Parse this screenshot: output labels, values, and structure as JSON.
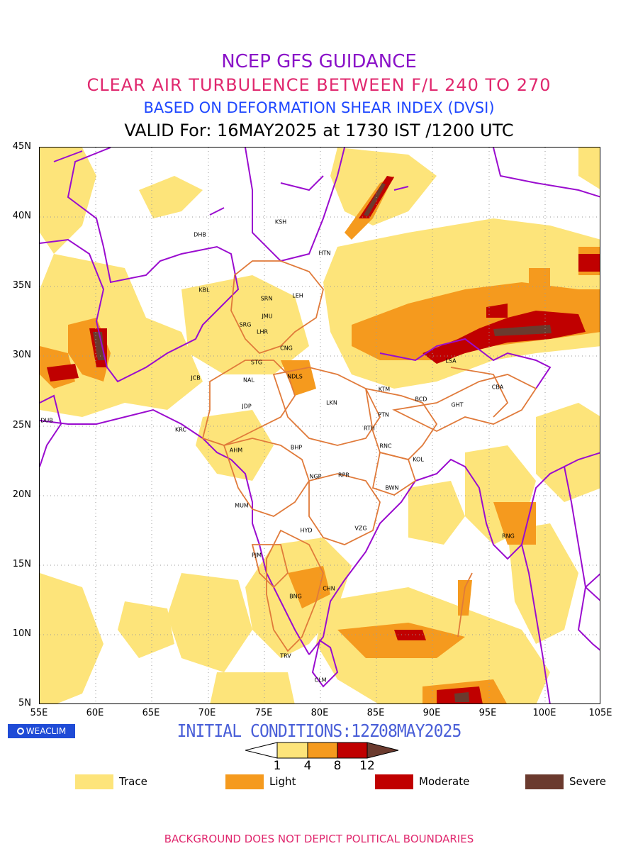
{
  "header": {
    "line1": "NCEP GFS GUIDANCE",
    "line2": "CLEAR AIR TURBULENCE BETWEEN F/L 240 TO 270",
    "line3": "BASED ON DEFORMATION SHEAR INDEX (DVSI)",
    "line4": "VALID For: 16MAY2025 at 1730 IST /1200 UTC"
  },
  "map": {
    "lat_labels": [
      "45N",
      "40N",
      "35N",
      "30N",
      "25N",
      "20N",
      "15N",
      "10N",
      "5N"
    ],
    "lon_labels": [
      "55E",
      "60E",
      "65E",
      "70E",
      "75E",
      "80E",
      "85E",
      "90E",
      "95E",
      "100E",
      "105E"
    ],
    "colors": {
      "trace": "#fde47a",
      "light": "#f59a1e",
      "moderate": "#c00000",
      "severe": "#6b3a2e",
      "coast": "#9a0ccf",
      "state": "#e07a3a",
      "grid": "#9a9a9a"
    },
    "cities": [
      {
        "id": "KSH",
        "label": "KSH"
      },
      {
        "id": "DHB",
        "label": "DHB"
      },
      {
        "id": "HTN",
        "label": "HTN"
      },
      {
        "id": "KBL",
        "label": "KBL"
      },
      {
        "id": "SRN",
        "label": "SRN"
      },
      {
        "id": "LEH",
        "label": "LEH"
      },
      {
        "id": "JMU",
        "label": "JMU"
      },
      {
        "id": "SRG",
        "label": "SRG"
      },
      {
        "id": "LHR",
        "label": "LHR"
      },
      {
        "id": "CNG",
        "label": "CNG"
      },
      {
        "id": "LSA",
        "label": "LSA"
      },
      {
        "id": "STG",
        "label": "STG"
      },
      {
        "id": "JCB",
        "label": "JCB"
      },
      {
        "id": "NAL",
        "label": "NAL"
      },
      {
        "id": "NDLS",
        "label": "NDLS"
      },
      {
        "id": "KTM",
        "label": "KTM"
      },
      {
        "id": "CBA",
        "label": "CBA"
      },
      {
        "id": "BCD",
        "label": "BCD"
      },
      {
        "id": "GHT",
        "label": "GHT"
      },
      {
        "id": "LKN",
        "label": "LKN"
      },
      {
        "id": "JDP",
        "label": "JDP"
      },
      {
        "id": "PTN",
        "label": "PTN"
      },
      {
        "id": "DUB",
        "label": "DUB"
      },
      {
        "id": "RTH",
        "label": "RTH"
      },
      {
        "id": "KRC",
        "label": "KRC"
      },
      {
        "id": "BHP",
        "label": "BHP"
      },
      {
        "id": "AHM",
        "label": "AHM"
      },
      {
        "id": "RNC",
        "label": "RNC"
      },
      {
        "id": "KOL",
        "label": "KOL"
      },
      {
        "id": "NGP",
        "label": "NGP"
      },
      {
        "id": "RPR",
        "label": "RPR"
      },
      {
        "id": "BWN",
        "label": "BWN"
      },
      {
        "id": "MUM",
        "label": "MUM"
      },
      {
        "id": "HYD",
        "label": "HYD"
      },
      {
        "id": "VZG",
        "label": "VZG"
      },
      {
        "id": "RNG",
        "label": "RNG"
      },
      {
        "id": "PJM",
        "label": "PJM"
      },
      {
        "id": "CHN",
        "label": "CHN"
      },
      {
        "id": "BNG",
        "label": "BNG"
      },
      {
        "id": "TRV",
        "label": "TRV"
      },
      {
        "id": "CLM",
        "label": "CLM"
      }
    ]
  },
  "logo": {
    "label": "WEACLIM",
    "icon": "globe-ring-icon"
  },
  "initial_conditions": "INITIAL CONDITIONS:12Z08MAY2025",
  "colorbar": {
    "ticks": [
      "1",
      "4",
      "8",
      "12"
    ]
  },
  "legend": [
    {
      "label": "Trace",
      "color": "#fde47a"
    },
    {
      "label": "Light",
      "color": "#f59a1e"
    },
    {
      "label": "Moderate",
      "color": "#c00000"
    },
    {
      "label": "Severe",
      "color": "#6b3a2e"
    }
  ],
  "footer": "BACKGROUND DOES NOT DEPICT POLITICAL BOUNDARIES"
}
